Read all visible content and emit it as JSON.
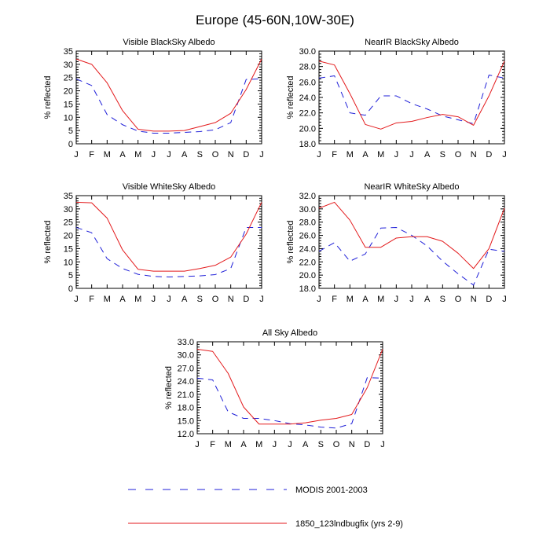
{
  "page": {
    "title": "Europe (45-60N,10W-30E)"
  },
  "colors": {
    "modis": "#1f1fd8",
    "model": "#e31a1c",
    "axis": "#000000"
  },
  "legend": {
    "items": [
      {
        "label": "MODIS 2001-2003",
        "color": "#1f1fd8",
        "dash": "dashed"
      },
      {
        "label": "1850_123lndbugfix (yrs 2-9)",
        "color": "#e31a1c",
        "dash": "solid"
      }
    ]
  },
  "chart_data": [
    {
      "type": "line",
      "title": "Visible BlackSky Albedo",
      "ylabel": "% reflected",
      "xlabel": "",
      "categories": [
        "J",
        "F",
        "M",
        "A",
        "M",
        "J",
        "J",
        "A",
        "S",
        "O",
        "N",
        "D",
        "J"
      ],
      "ylim": [
        0,
        35
      ],
      "yticks": [
        0,
        5,
        10,
        15,
        20,
        25,
        30,
        35
      ],
      "ytick_labels": [
        "0",
        "5",
        "10",
        "15",
        "20",
        "25",
        "30",
        "35"
      ],
      "series": [
        {
          "values": [
            24.5,
            22.0,
            11.0,
            7.2,
            4.8,
            4.0,
            4.0,
            4.3,
            4.6,
            5.3,
            8.0,
            24.3,
            24.5
          ]
        },
        {
          "values": [
            32.0,
            30.0,
            23.0,
            12.5,
            5.5,
            4.8,
            4.8,
            5.0,
            6.5,
            8.0,
            11.5,
            20.5,
            32.0
          ]
        }
      ]
    },
    {
      "type": "line",
      "title": "NearIR BlackSky Albedo",
      "ylabel": "% reflected",
      "xlabel": "",
      "categories": [
        "J",
        "F",
        "M",
        "A",
        "M",
        "J",
        "J",
        "A",
        "S",
        "O",
        "N",
        "D",
        "J"
      ],
      "ylim": [
        18,
        30
      ],
      "yticks": [
        18,
        20,
        22,
        24,
        26,
        28,
        30
      ],
      "ytick_labels": [
        "18.0",
        "20.0",
        "22.0",
        "24.0",
        "26.0",
        "28.0",
        "30.0"
      ],
      "series": [
        {
          "values": [
            26.5,
            26.8,
            22.0,
            21.7,
            24.2,
            24.2,
            23.2,
            22.5,
            21.6,
            21.1,
            20.6,
            26.9,
            26.5
          ]
        },
        {
          "values": [
            28.7,
            28.2,
            24.5,
            20.5,
            19.9,
            20.7,
            20.9,
            21.4,
            21.8,
            21.5,
            20.4,
            24.2,
            28.7
          ]
        }
      ]
    },
    {
      "type": "line",
      "title": "Visible WhiteSky Albedo",
      "ylabel": "% reflected",
      "xlabel": "",
      "categories": [
        "J",
        "F",
        "M",
        "A",
        "M",
        "J",
        "J",
        "A",
        "S",
        "O",
        "N",
        "D",
        "J"
      ],
      "ylim": [
        0,
        35
      ],
      "yticks": [
        0,
        5,
        10,
        15,
        20,
        25,
        30,
        35
      ],
      "ytick_labels": [
        "0",
        "5",
        "10",
        "15",
        "20",
        "25",
        "30",
        "35"
      ],
      "series": [
        {
          "values": [
            23.0,
            21.0,
            11.2,
            7.5,
            5.3,
            4.5,
            4.3,
            4.5,
            4.7,
            5.2,
            7.5,
            23.0,
            23.0
          ]
        },
        {
          "values": [
            32.5,
            32.3,
            26.5,
            14.5,
            7.2,
            6.5,
            6.5,
            6.5,
            7.5,
            8.7,
            11.8,
            20.5,
            32.5
          ]
        }
      ]
    },
    {
      "type": "line",
      "title": "NearIR WhiteSky Albedo",
      "ylabel": "% reflected",
      "xlabel": "",
      "categories": [
        "J",
        "F",
        "M",
        "A",
        "M",
        "J",
        "J",
        "A",
        "S",
        "O",
        "N",
        "D",
        "J"
      ],
      "ylim": [
        18,
        32
      ],
      "yticks": [
        18,
        20,
        22,
        24,
        26,
        28,
        30,
        32
      ],
      "ytick_labels": [
        "18.0",
        "20.0",
        "22.0",
        "24.0",
        "26.0",
        "28.0",
        "30.0",
        "32.0"
      ],
      "series": [
        {
          "values": [
            23.6,
            24.9,
            22.1,
            23.2,
            27.1,
            27.2,
            26.0,
            24.4,
            22.1,
            20.2,
            18.5,
            23.9,
            23.6
          ]
        },
        {
          "values": [
            30.1,
            31.0,
            28.3,
            24.2,
            24.2,
            25.6,
            25.8,
            25.8,
            25.1,
            23.3,
            21.0,
            24.0,
            30.1
          ]
        }
      ]
    },
    {
      "type": "line",
      "title": "All Sky Albedo",
      "ylabel": "% reflected",
      "xlabel": "",
      "categories": [
        "J",
        "F",
        "M",
        "A",
        "M",
        "J",
        "J",
        "A",
        "S",
        "O",
        "N",
        "D",
        "J"
      ],
      "ylim": [
        12,
        33
      ],
      "yticks": [
        12,
        15,
        18,
        21,
        24,
        27,
        30,
        33
      ],
      "ytick_labels": [
        "12.0",
        "15.0",
        "18.0",
        "21.0",
        "24.0",
        "27.0",
        "30.0",
        "33.0"
      ],
      "series": [
        {
          "values": [
            24.7,
            24.3,
            17.0,
            15.5,
            15.5,
            15.0,
            14.3,
            14.0,
            13.5,
            13.3,
            14.3,
            24.8,
            24.7
          ]
        },
        {
          "values": [
            31.3,
            30.8,
            25.8,
            18.1,
            14.2,
            14.2,
            14.2,
            14.5,
            15.1,
            15.5,
            16.4,
            22.5,
            31.3
          ]
        }
      ]
    }
  ]
}
